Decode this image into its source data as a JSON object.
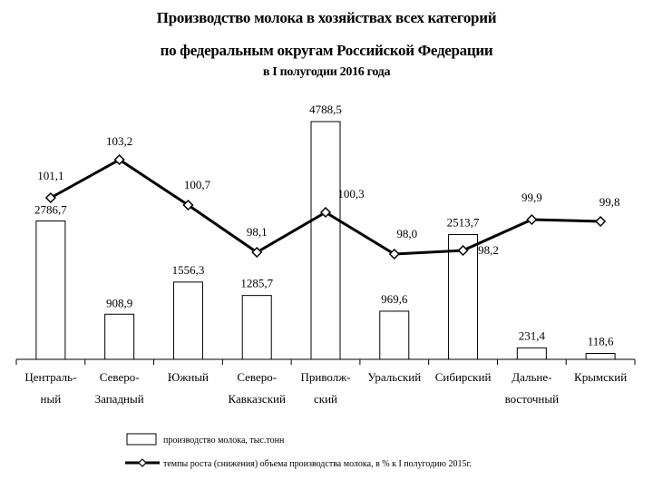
{
  "title": {
    "line1": "Производство молока в хозяйствах всех категорий",
    "line2": "по федеральным округам Российской Федерации",
    "line3": "в I полугодии 2016 года"
  },
  "chart_data": {
    "type": "bar",
    "title": "Производство молока в хозяйствах всех категорий по федеральным округам Российской Федерации в I полугодии 2016 года",
    "categories": [
      [
        "Централь-",
        "ный"
      ],
      [
        "Северо-",
        "Западный"
      ],
      [
        "Южный"
      ],
      [
        "Северо-",
        "Кавказский"
      ],
      [
        "Приволж-",
        "ский"
      ],
      [
        "Уральский"
      ],
      [
        "Сибирский"
      ],
      [
        "Дальне-",
        "восточный"
      ],
      [
        "Крымский"
      ]
    ],
    "series": [
      {
        "name": "производство молока, тыс.тонн",
        "type": "bar",
        "values": [
          2786.7,
          908.9,
          1556.3,
          1285.7,
          4788.5,
          969.6,
          2513.7,
          231.4,
          118.6
        ],
        "labels": [
          "2786,7",
          "908,9",
          "1556,3",
          "1285,7",
          "4788,5",
          "969,6",
          "2513,7",
          "231,4",
          "118,6"
        ]
      },
      {
        "name": "темпы роста (снижения) объема производства молока, в % к I полугодию 2015г.",
        "type": "line",
        "values": [
          101.1,
          103.2,
          100.7,
          98.1,
          100.3,
          98.0,
          98.2,
          99.9,
          99.8
        ],
        "labels": [
          "101,1",
          "103,2",
          "100,7",
          "98,1",
          "100,3",
          "98,0",
          "98,2",
          "99,9",
          "99,8"
        ]
      }
    ],
    "legend_position": "bottom",
    "grid": false
  }
}
